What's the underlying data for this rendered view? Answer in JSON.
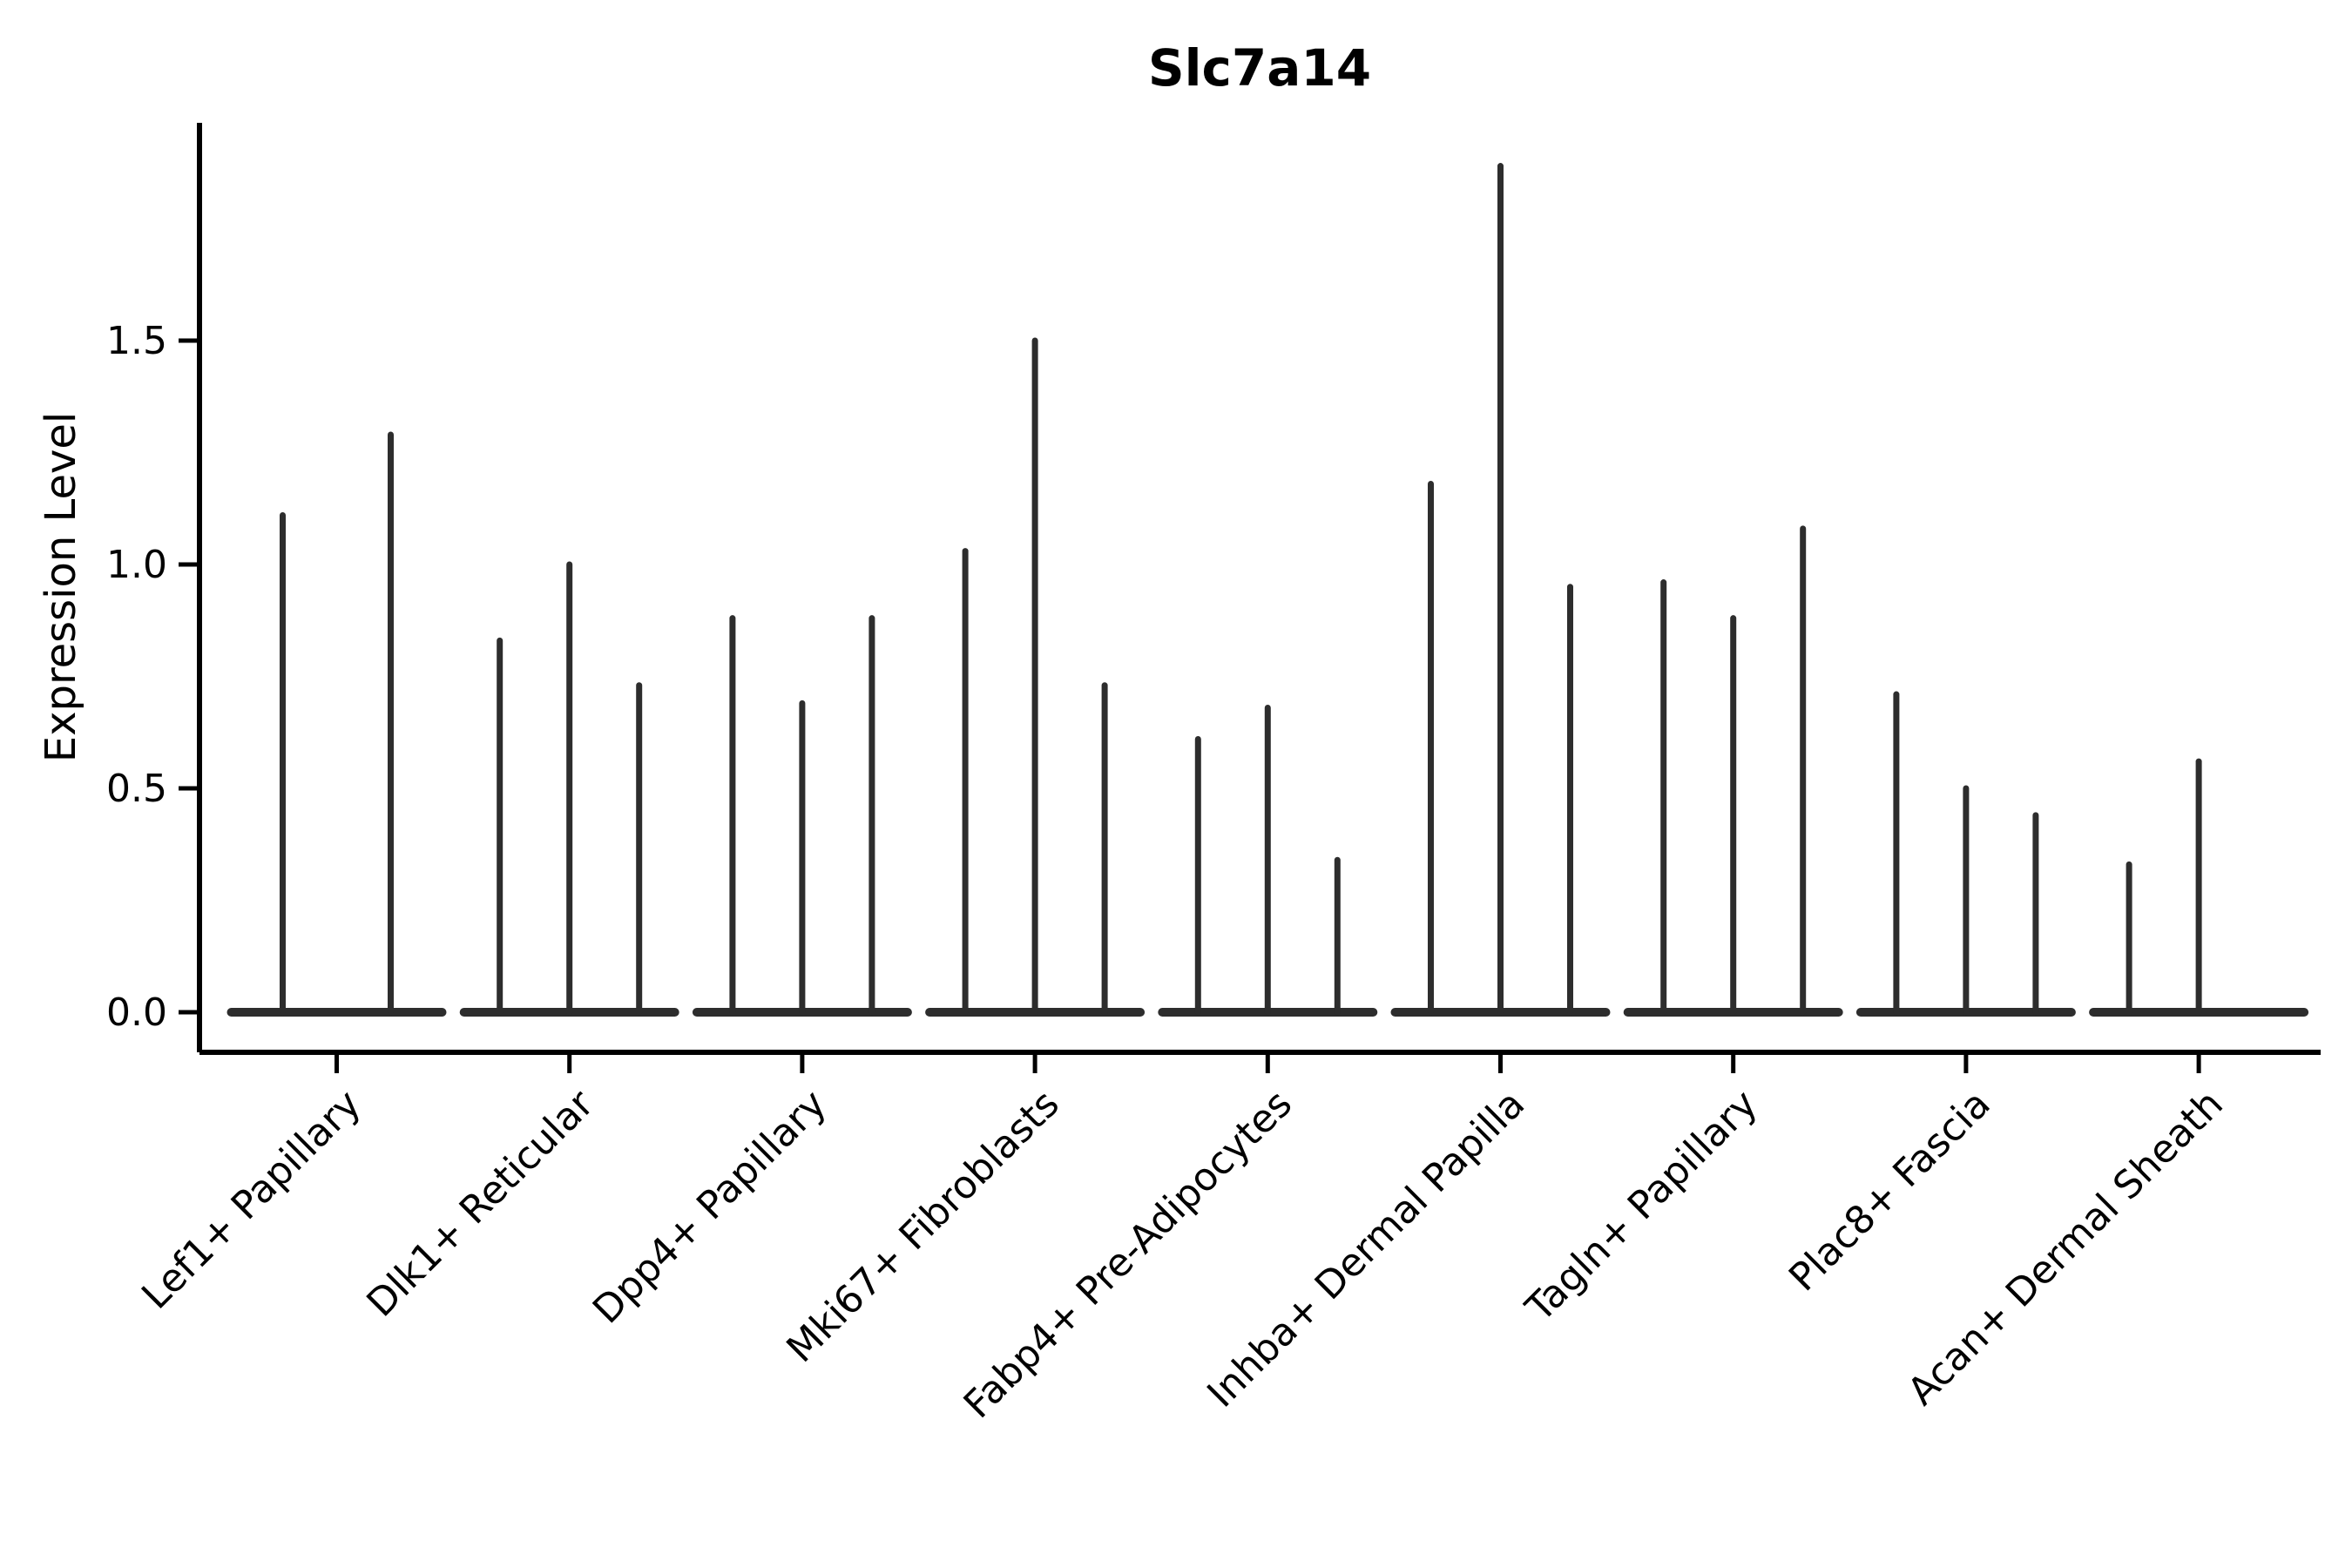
{
  "page": {
    "background": "#ffffff"
  },
  "chart_data": {
    "type": "violin",
    "title": "Slc7a14",
    "ylabel": "Expression Level",
    "xlabel": "",
    "ylim": [
      -0.09,
      1.99
    ],
    "grid": false,
    "legend": "none",
    "violin_line_color": "#2d2d2d",
    "spine_color": "#000000",
    "yticks": [
      {
        "value": 0.0,
        "label": "0.0"
      },
      {
        "value": 0.5,
        "label": "0.5"
      },
      {
        "value": 1.0,
        "label": "1.0"
      },
      {
        "value": 1.5,
        "label": "1.5"
      }
    ],
    "categories": [
      "Lef1+ Papillary",
      "Dlk1+ Reticular",
      "Dpp4+ Papillary",
      "Mki67+ Fibroblasts",
      "Fabp4+ Pre-Adipocytes",
      "Inhba+ Dermal Papilla",
      "Tagln+ Papillary",
      "Plac8+ Fascia",
      "Acan+ Dermal Sheath"
    ],
    "violin_peaks": [
      [
        1.11,
        1.29
      ],
      [
        0.83,
        1.0,
        0.73
      ],
      [
        0.88,
        0.69,
        0.88
      ],
      [
        1.03,
        1.5,
        0.73
      ],
      [
        0.61,
        0.68,
        0.34
      ],
      [
        1.18,
        1.89,
        0.95
      ],
      [
        0.96,
        0.88,
        1.08
      ],
      [
        0.71,
        0.5,
        0.44
      ],
      [
        0.33,
        0.56,
        0.0
      ]
    ]
  }
}
